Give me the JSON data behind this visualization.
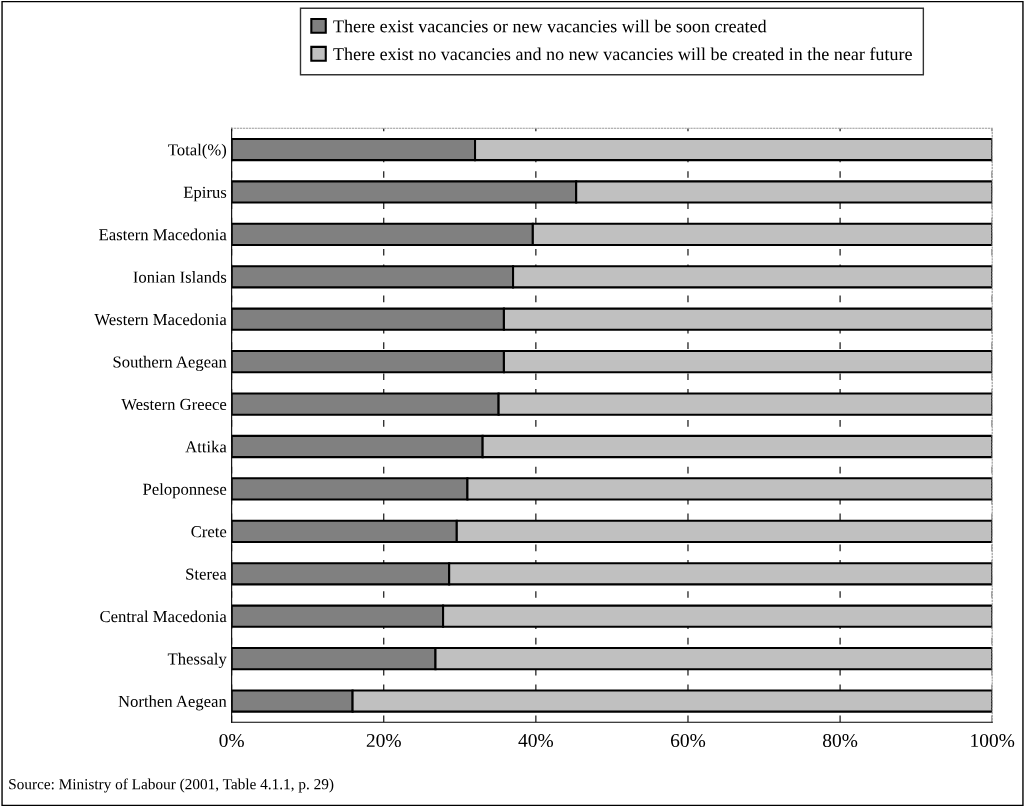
{
  "chart_data": {
    "type": "bar",
    "orientation": "horizontal",
    "stacked": true,
    "categories": [
      "Total(%)",
      "Epirus",
      "Eastern Macedonia",
      "Ionian Islands",
      "Western Macedonia",
      "Southern Aegean",
      "Western Greece",
      "Attika",
      "Peloponnese",
      "Crete",
      "Sterea",
      "Central Macedonia",
      "Thessaly",
      "Northen Aegean"
    ],
    "series": [
      {
        "name": "There exist vacancies or new vacancies will be soon created",
        "color": "#808080",
        "values": [
          32,
          45.3,
          39.6,
          37,
          35.8,
          35.8,
          35.1,
          33,
          31,
          29.6,
          28.6,
          27.8,
          26.8,
          15.9
        ]
      },
      {
        "name": "There exist no vacancies and no new vacancies will be created in the near future",
        "color": "#c0c0c0",
        "values": [
          68,
          54.7,
          60.4,
          63,
          64.2,
          64.2,
          64.9,
          67,
          69,
          70.4,
          71.4,
          72.2,
          73.2,
          84.1
        ]
      }
    ],
    "xlim": [
      0,
      100
    ],
    "xticks": [
      {
        "value": 0,
        "label": "0%"
      },
      {
        "value": 20,
        "label": "20%"
      },
      {
        "value": 40,
        "label": "40%"
      },
      {
        "value": 60,
        "label": "60%"
      },
      {
        "value": 80,
        "label": "80%"
      },
      {
        "value": 100,
        "label": "100%"
      }
    ],
    "grid": "x",
    "legend": "top",
    "annotations": [
      "Source: Ministry of Labour (2001, Table 4.1.1, p. 29)"
    ]
  }
}
